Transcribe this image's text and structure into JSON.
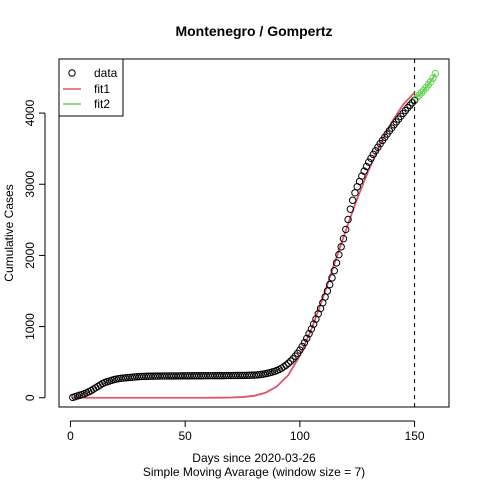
{
  "chart_data": {
    "type": "scatter",
    "title": "Montenegro / Gompertz",
    "xlabel": "Days since 2020-03-26",
    "subtitle": "Simple Moving Avarage (window size = 7)",
    "ylabel": "Cumulative Cases",
    "xlim": [
      -5,
      165
    ],
    "ylim": [
      -130,
      4760
    ],
    "x_ticks": [
      0,
      50,
      100,
      150
    ],
    "y_ticks": [
      0,
      1000,
      2000,
      3000,
      4000
    ],
    "x_tick_labels": [
      "0",
      "50",
      "100",
      "150"
    ],
    "y_tick_labels": [
      "0",
      "1000",
      "2000",
      "3000",
      "4000"
    ],
    "vline_x": 150,
    "grid": false,
    "legend_position": "top-left",
    "legend": {
      "items": [
        {
          "label": "data",
          "kind": "point",
          "color": "#000000"
        },
        {
          "label": "fit1",
          "kind": "line",
          "color": "#DF536B"
        },
        {
          "label": "fit2",
          "kind": "line",
          "color": "#61D04F"
        }
      ]
    },
    "series": [
      {
        "name": "data",
        "kind": "points",
        "color": "#000000",
        "x": [
          1,
          2,
          3,
          4,
          5,
          6,
          7,
          8,
          9,
          10,
          11,
          12,
          13,
          14,
          15,
          16,
          17,
          18,
          19,
          20,
          21,
          22,
          23,
          24,
          25,
          26,
          27,
          28,
          29,
          30,
          31,
          32,
          33,
          34,
          35,
          36,
          37,
          38,
          39,
          40,
          41,
          42,
          43,
          44,
          45,
          46,
          47,
          48,
          49,
          50,
          51,
          52,
          53,
          54,
          55,
          56,
          57,
          58,
          59,
          60,
          61,
          62,
          63,
          64,
          65,
          66,
          67,
          68,
          69,
          70,
          71,
          72,
          73,
          74,
          75,
          76,
          77,
          78,
          79,
          80,
          81,
          82,
          83,
          84,
          85,
          86,
          87,
          88,
          89,
          90,
          91,
          92,
          93,
          94,
          95,
          96,
          97,
          98,
          99,
          100,
          101,
          102,
          103,
          104,
          105,
          106,
          107,
          108,
          109,
          110,
          111,
          112,
          113,
          114,
          115,
          116,
          117,
          118,
          119,
          120,
          121,
          122,
          123,
          124,
          125,
          126,
          127,
          128,
          129,
          130,
          131,
          132,
          133,
          134,
          135,
          136,
          137,
          138,
          139,
          140,
          141,
          142,
          143,
          144,
          145,
          146,
          147,
          148,
          149,
          150
        ],
        "y": [
          5,
          15,
          25,
          35,
          45,
          55,
          70,
          85,
          100,
          120,
          140,
          160,
          180,
          200,
          215,
          225,
          235,
          245,
          255,
          262,
          268,
          273,
          277,
          280,
          283,
          286,
          289,
          292,
          295,
          297,
          299,
          300,
          301,
          302,
          303,
          303,
          304,
          304,
          305,
          305,
          305,
          306,
          306,
          306,
          307,
          307,
          307,
          308,
          308,
          308,
          308,
          308,
          309,
          309,
          309,
          309,
          309,
          310,
          310,
          310,
          310,
          310,
          311,
          311,
          311,
          311,
          311,
          312,
          312,
          312,
          312,
          313,
          313,
          313,
          314,
          314,
          315,
          316,
          317,
          318,
          320,
          323,
          327,
          332,
          338,
          345,
          353,
          362,
          372,
          384,
          398,
          415,
          435,
          458,
          485,
          515,
          548,
          585,
          625,
          670,
          720,
          775,
          835,
          900,
          965,
          1035,
          1105,
          1180,
          1255,
          1335,
          1415,
          1500,
          1590,
          1685,
          1785,
          1895,
          2010,
          2120,
          2235,
          2365,
          2505,
          2650,
          2775,
          2880,
          2965,
          3040,
          3115,
          3185,
          3250,
          3310,
          3365,
          3420,
          3470,
          3520,
          3570,
          3615,
          3660,
          3705,
          3750,
          3790,
          3835,
          3875,
          3915,
          3955,
          3995,
          4035,
          4075,
          4110,
          4145,
          4180
        ]
      },
      {
        "name": "fit2",
        "kind": "points",
        "color": "#61D04F",
        "x": [
          151,
          152,
          153,
          154,
          155,
          156,
          157,
          158,
          159
        ],
        "y": [
          4215,
          4250,
          4285,
          4320,
          4360,
          4400,
          4440,
          4490,
          4555
        ]
      },
      {
        "name": "fit1",
        "kind": "line",
        "color": "#DF536B",
        "x": [
          1,
          10,
          20,
          30,
          40,
          50,
          60,
          65,
          70,
          75,
          80,
          85,
          90,
          95,
          100,
          105,
          110,
          115,
          120,
          125,
          130,
          135,
          140,
          145,
          150
        ],
        "y": [
          0,
          0,
          0,
          0,
          0,
          0,
          0,
          1,
          3,
          10,
          27,
          70,
          160,
          320,
          590,
          960,
          1400,
          1880,
          2350,
          2800,
          3200,
          3560,
          3870,
          4120,
          4290
        ]
      },
      {
        "name": "fit2",
        "kind": "line",
        "color": "#61D04F",
        "x": [
          150,
          152,
          154,
          156,
          158,
          159
        ],
        "y": [
          4215,
          4250,
          4320,
          4400,
          4490,
          4555
        ]
      }
    ]
  }
}
